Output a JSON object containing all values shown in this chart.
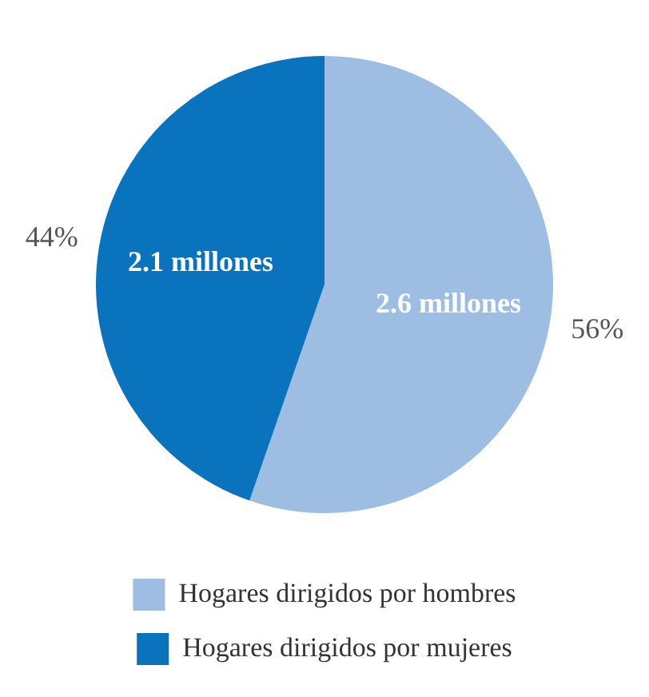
{
  "chart_data": {
    "type": "pie",
    "categories": [
      "Hogares dirigidos por hombres",
      "Hogares dirigidos por mujeres"
    ],
    "values": [
      2.6,
      2.1
    ],
    "colors": [
      "#9dbde3",
      "#0a73be"
    ],
    "value_labels": [
      "2.6 millones",
      "2.1 millones"
    ],
    "annotations": [
      "56%",
      "44%"
    ],
    "legend": "bottom"
  }
}
